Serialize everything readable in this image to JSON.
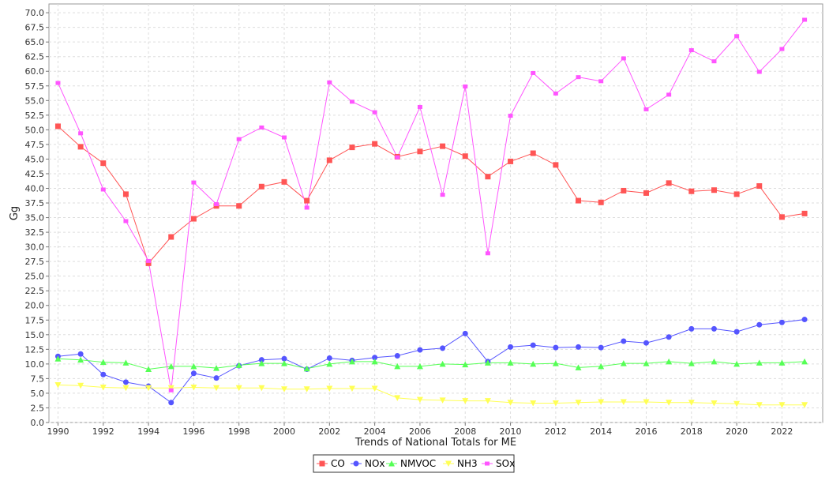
{
  "chart_data": {
    "type": "line",
    "title": "",
    "xlabel": "Trends of National Totals for ME",
    "ylabel": "Gg",
    "xlim": [
      1989.6,
      2023.8
    ],
    "ylim": [
      0,
      71.5
    ],
    "x_ticks": [
      1990,
      1992,
      1994,
      1996,
      1998,
      2000,
      2002,
      2004,
      2006,
      2008,
      2010,
      2012,
      2014,
      2016,
      2018,
      2020,
      2022
    ],
    "y_ticks": [
      0.0,
      2.5,
      5.0,
      7.5,
      10.0,
      12.5,
      15.0,
      17.5,
      20.0,
      22.5,
      25.0,
      27.5,
      30.0,
      32.5,
      35.0,
      37.5,
      40.0,
      42.5,
      45.0,
      47.5,
      50.0,
      52.5,
      55.0,
      57.5,
      60.0,
      62.5,
      65.0,
      67.5,
      70.0
    ],
    "grid": true,
    "legend_position": "bottom-center",
    "x": [
      1990,
      1991,
      1992,
      1993,
      1994,
      1995,
      1996,
      1997,
      1998,
      1999,
      2000,
      2001,
      2002,
      2003,
      2004,
      2005,
      2006,
      2007,
      2008,
      2009,
      2010,
      2011,
      2012,
      2013,
      2014,
      2015,
      2016,
      2017,
      2018,
      2019,
      2020,
      2021,
      2022,
      2023
    ],
    "series": [
      {
        "name": "CO",
        "color": "#ff5555",
        "marker": "square",
        "values": [
          50.6,
          47.1,
          44.3,
          39.0,
          27.2,
          31.7,
          34.8,
          37.0,
          37.0,
          40.3,
          41.1,
          37.9,
          44.8,
          47.0,
          47.6,
          45.4,
          46.3,
          47.2,
          45.5,
          42.0,
          44.6,
          46.0,
          44.0,
          37.9,
          37.6,
          39.6,
          39.2,
          40.9,
          39.5,
          39.7,
          39.0,
          40.4,
          35.1,
          35.7
        ]
      },
      {
        "name": "NOx",
        "color": "#5555ff",
        "marker": "circle",
        "values": [
          11.3,
          11.7,
          8.2,
          6.9,
          6.2,
          3.4,
          8.4,
          7.6,
          9.7,
          10.7,
          10.9,
          9.1,
          11.0,
          10.6,
          11.1,
          11.4,
          12.4,
          12.7,
          15.2,
          10.4,
          12.9,
          13.2,
          12.8,
          12.9,
          12.8,
          13.9,
          13.6,
          14.6,
          16.0,
          16.0,
          15.5,
          16.7,
          17.1,
          17.6
        ]
      },
      {
        "name": "NMVOC",
        "color": "#55ff55",
        "marker": "triangle",
        "values": [
          10.9,
          10.7,
          10.3,
          10.2,
          9.1,
          9.6,
          9.6,
          9.3,
          9.8,
          10.1,
          10.1,
          9.2,
          10.0,
          10.4,
          10.4,
          9.6,
          9.6,
          10.0,
          9.9,
          10.2,
          10.2,
          10.0,
          10.1,
          9.4,
          9.6,
          10.1,
          10.1,
          10.4,
          10.1,
          10.4,
          10.0,
          10.2,
          10.2,
          10.4
        ]
      },
      {
        "name": "NH3",
        "color": "#ffff55",
        "marker": "triangle-down",
        "values": [
          6.4,
          6.3,
          6.0,
          5.9,
          5.9,
          5.9,
          6.0,
          5.9,
          5.9,
          5.9,
          5.7,
          5.7,
          5.8,
          5.8,
          5.8,
          4.2,
          3.9,
          3.8,
          3.7,
          3.7,
          3.4,
          3.3,
          3.3,
          3.4,
          3.5,
          3.5,
          3.5,
          3.4,
          3.4,
          3.3,
          3.2,
          3.0,
          3.0,
          3.0
        ]
      },
      {
        "name": "SOx",
        "color": "#ff55ff",
        "marker": "diamond",
        "values": [
          58.0,
          49.4,
          39.8,
          34.4,
          27.6,
          5.5,
          41.0,
          37.3,
          48.4,
          50.4,
          48.7,
          36.7,
          58.1,
          54.8,
          53.0,
          45.3,
          53.9,
          38.9,
          57.4,
          28.9,
          52.4,
          59.7,
          56.2,
          59.0,
          58.3,
          62.2,
          53.5,
          56.0,
          63.6,
          61.7,
          66.0,
          59.9,
          63.8,
          68.8
        ]
      }
    ]
  }
}
